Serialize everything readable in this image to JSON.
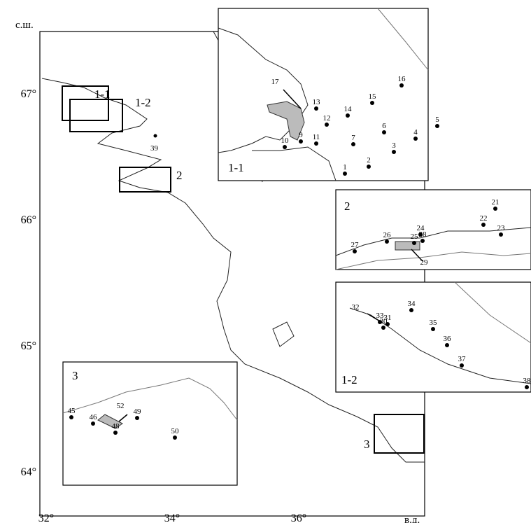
{
  "map": {
    "lat_label": "с.ш.",
    "lon_label": "в.д.",
    "lat_ticks": [
      "67°",
      "66°",
      "65°",
      "64°"
    ],
    "lon_ticks": [
      "32°",
      "34°",
      "36°"
    ],
    "overview_labels": [
      "1-1",
      "1-2",
      "2",
      "3",
      "39"
    ],
    "insets": [
      {
        "label": "1-1",
        "stations": [
          "1",
          "2",
          "3",
          "4",
          "5",
          "6",
          "7",
          "9",
          "10",
          "11",
          "12",
          "13",
          "14",
          "15",
          "16",
          "17"
        ]
      },
      {
        "label": "2",
        "stations": [
          "21",
          "22",
          "23",
          "24",
          "25",
          "26",
          "27",
          "28",
          "29"
        ]
      },
      {
        "label": "1-2",
        "stations": [
          "30",
          "31",
          "32",
          "33",
          "34",
          "35",
          "36",
          "37",
          "38"
        ]
      },
      {
        "label": "3",
        "stations": [
          "45",
          "46",
          "48",
          "49",
          "50",
          "52"
        ]
      }
    ]
  }
}
